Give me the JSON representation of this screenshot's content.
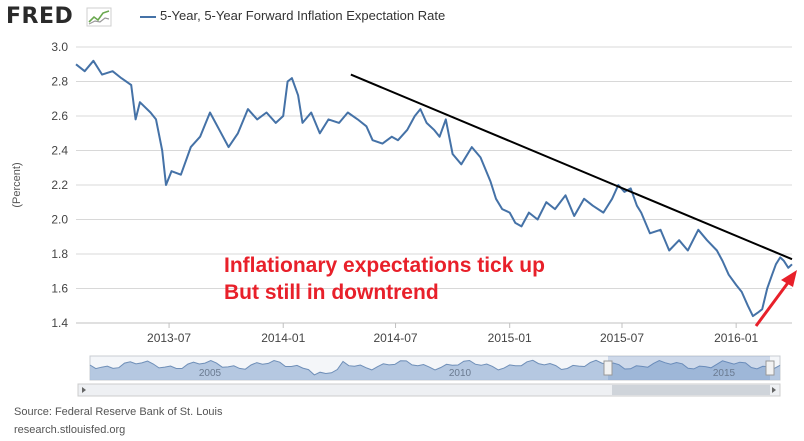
{
  "header": {
    "logo_text": "FRED",
    "legend_label": "5-Year, 5-Year Forward Inflation Expectation Rate"
  },
  "colors": {
    "series": "#4572a7",
    "trendline": "#000000",
    "annotation": "#e8202a",
    "grid": "#d8d8d8",
    "navigator_fill": "#a9c0dd"
  },
  "chart_data": {
    "type": "line",
    "title": "",
    "ylabel": "(Percent)",
    "xlabel": "",
    "ylim": [
      1.4,
      3.0
    ],
    "yticks": [
      1.4,
      1.6,
      1.8,
      2.0,
      2.2,
      2.4,
      2.6,
      2.8,
      3.0
    ],
    "x_ticks": [
      "2013-07",
      "2014-01",
      "2014-07",
      "2015-01",
      "2015-07",
      "2016-01"
    ],
    "x_range": [
      "2013-02-01",
      "2016-03-31"
    ],
    "grid": true,
    "series": [
      {
        "name": "5-Year, 5-Year Forward Inflation Expectation Rate",
        "points": [
          [
            "2013-02-01",
            2.9
          ],
          [
            "2013-02-15",
            2.86
          ],
          [
            "2013-03-01",
            2.92
          ],
          [
            "2013-03-15",
            2.84
          ],
          [
            "2013-04-01",
            2.86
          ],
          [
            "2013-04-15",
            2.82
          ],
          [
            "2013-05-01",
            2.78
          ],
          [
            "2013-05-08",
            2.58
          ],
          [
            "2013-05-15",
            2.68
          ],
          [
            "2013-06-01",
            2.62
          ],
          [
            "2013-06-10",
            2.58
          ],
          [
            "2013-06-20",
            2.4
          ],
          [
            "2013-06-26",
            2.2
          ],
          [
            "2013-07-05",
            2.28
          ],
          [
            "2013-07-20",
            2.26
          ],
          [
            "2013-08-05",
            2.42
          ],
          [
            "2013-08-20",
            2.48
          ],
          [
            "2013-09-05",
            2.62
          ],
          [
            "2013-09-20",
            2.52
          ],
          [
            "2013-10-05",
            2.42
          ],
          [
            "2013-10-20",
            2.5
          ],
          [
            "2013-11-05",
            2.64
          ],
          [
            "2013-11-20",
            2.58
          ],
          [
            "2013-12-05",
            2.62
          ],
          [
            "2013-12-20",
            2.56
          ],
          [
            "2014-01-01",
            2.6
          ],
          [
            "2014-01-08",
            2.8
          ],
          [
            "2014-01-15",
            2.82
          ],
          [
            "2014-01-25",
            2.72
          ],
          [
            "2014-02-01",
            2.56
          ],
          [
            "2014-02-15",
            2.62
          ],
          [
            "2014-03-01",
            2.5
          ],
          [
            "2014-03-15",
            2.58
          ],
          [
            "2014-04-01",
            2.56
          ],
          [
            "2014-04-15",
            2.62
          ],
          [
            "2014-05-01",
            2.58
          ],
          [
            "2014-05-15",
            2.54
          ],
          [
            "2014-05-25",
            2.46
          ],
          [
            "2014-06-10",
            2.44
          ],
          [
            "2014-06-25",
            2.48
          ],
          [
            "2014-07-05",
            2.46
          ],
          [
            "2014-07-20",
            2.52
          ],
          [
            "2014-08-01",
            2.6
          ],
          [
            "2014-08-10",
            2.64
          ],
          [
            "2014-08-20",
            2.56
          ],
          [
            "2014-09-01",
            2.52
          ],
          [
            "2014-09-10",
            2.48
          ],
          [
            "2014-09-20",
            2.58
          ],
          [
            "2014-10-01",
            2.38
          ],
          [
            "2014-10-15",
            2.32
          ],
          [
            "2014-11-01",
            2.42
          ],
          [
            "2014-11-15",
            2.36
          ],
          [
            "2014-12-01",
            2.22
          ],
          [
            "2014-12-10",
            2.12
          ],
          [
            "2014-12-20",
            2.06
          ],
          [
            "2015-01-01",
            2.04
          ],
          [
            "2015-01-10",
            1.98
          ],
          [
            "2015-01-20",
            1.96
          ],
          [
            "2015-02-01",
            2.04
          ],
          [
            "2015-02-15",
            2.0
          ],
          [
            "2015-03-01",
            2.1
          ],
          [
            "2015-03-15",
            2.06
          ],
          [
            "2015-04-01",
            2.14
          ],
          [
            "2015-04-15",
            2.02
          ],
          [
            "2015-05-01",
            2.12
          ],
          [
            "2015-05-15",
            2.08
          ],
          [
            "2015-06-01",
            2.04
          ],
          [
            "2015-06-15",
            2.12
          ],
          [
            "2015-06-25",
            2.2
          ],
          [
            "2015-07-05",
            2.16
          ],
          [
            "2015-07-15",
            2.18
          ],
          [
            "2015-07-25",
            2.08
          ],
          [
            "2015-08-01",
            2.04
          ],
          [
            "2015-08-15",
            1.92
          ],
          [
            "2015-09-01",
            1.94
          ],
          [
            "2015-09-15",
            1.82
          ],
          [
            "2015-10-01",
            1.88
          ],
          [
            "2015-10-15",
            1.82
          ],
          [
            "2015-11-01",
            1.94
          ],
          [
            "2015-11-15",
            1.88
          ],
          [
            "2015-12-01",
            1.82
          ],
          [
            "2015-12-10",
            1.76
          ],
          [
            "2015-12-20",
            1.68
          ],
          [
            "2016-01-01",
            1.62
          ],
          [
            "2016-01-10",
            1.58
          ],
          [
            "2016-01-20",
            1.5
          ],
          [
            "2016-01-28",
            1.44
          ],
          [
            "2016-02-05",
            1.46
          ],
          [
            "2016-02-12",
            1.48
          ],
          [
            "2016-02-20",
            1.6
          ],
          [
            "2016-02-28",
            1.68
          ],
          [
            "2016-03-05",
            1.74
          ],
          [
            "2016-03-12",
            1.78
          ],
          [
            "2016-03-18",
            1.76
          ],
          [
            "2016-03-25",
            1.72
          ],
          [
            "2016-03-31",
            1.74
          ]
        ]
      }
    ],
    "trendline": [
      [
        "2014-04-20",
        2.84
      ],
      [
        "2016-03-31",
        1.77
      ]
    ],
    "annotations": [
      "Inflationary expectations tick up",
      "But still in downtrend"
    ],
    "navigator": {
      "labels": [
        "2005",
        "2010",
        "2015"
      ]
    }
  },
  "footer": {
    "source": "Source: Federal Reserve Bank of St. Louis",
    "url": "research.stlouisfed.org"
  }
}
